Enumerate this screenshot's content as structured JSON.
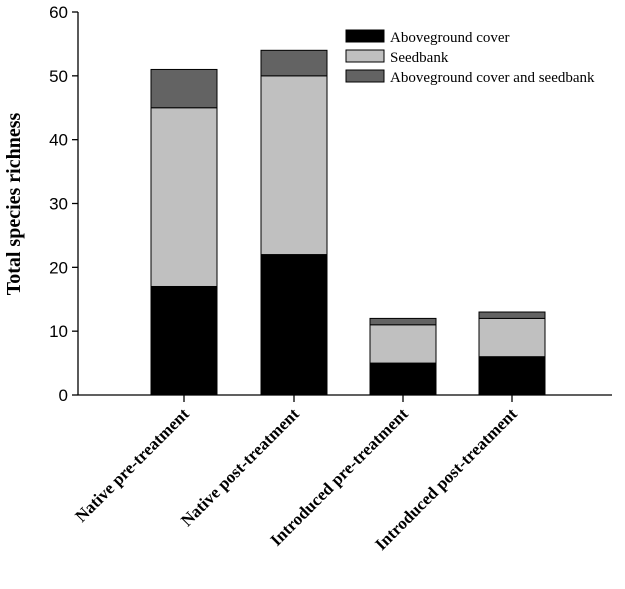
{
  "chart_data": {
    "type": "bar",
    "stacked": true,
    "ylabel": "Total species richness",
    "xlabel": "",
    "ylim": [
      0,
      60
    ],
    "yticks": [
      0,
      10,
      20,
      30,
      40,
      50,
      60
    ],
    "categories": [
      "Native pre-treatment",
      "Native post-treatment",
      "Introduced pre-treatment",
      "Introduced post-treatment"
    ],
    "series": [
      {
        "name": "Aboveground cover",
        "color": "#000000",
        "values": [
          17,
          22,
          5,
          6
        ]
      },
      {
        "name": "Seedbank",
        "color": "#c0c0c0",
        "values": [
          28,
          28,
          6,
          6
        ]
      },
      {
        "name": "Aboveground cover and seedbank",
        "color": "#636363",
        "values": [
          6,
          4,
          1,
          1
        ]
      }
    ],
    "legend_position": "top-right",
    "grid": false
  }
}
